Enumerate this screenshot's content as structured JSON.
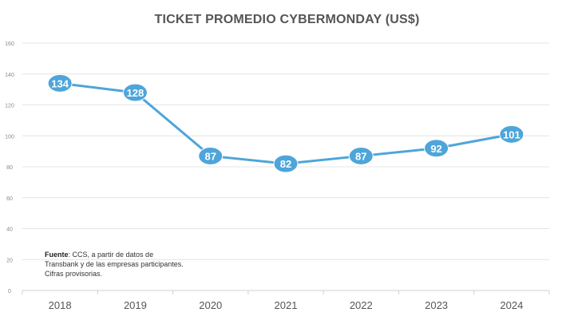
{
  "chart_data": {
    "type": "line",
    "title": "TICKET PROMEDIO CYBERMONDAY (US$)",
    "xlabel": "",
    "ylabel": "",
    "categories": [
      "2018",
      "2019",
      "2020",
      "2021",
      "2022",
      "2023",
      "2024"
    ],
    "series": [
      {
        "name": "Ticket promedio",
        "values": [
          134,
          128,
          87,
          82,
          87,
          92,
          101
        ],
        "color": "#4ea5d9"
      }
    ],
    "ylim": [
      0,
      160
    ],
    "yticks": [
      0,
      20,
      40,
      60,
      80,
      100,
      120,
      140,
      160
    ],
    "grid": true,
    "legend": "none"
  },
  "note": {
    "source_label": "Fuente",
    "source_text": ": CCS, a partir de datos de",
    "line2": "Transbank y de las empresas participantes.",
    "line3": "Cifras provisorias."
  }
}
